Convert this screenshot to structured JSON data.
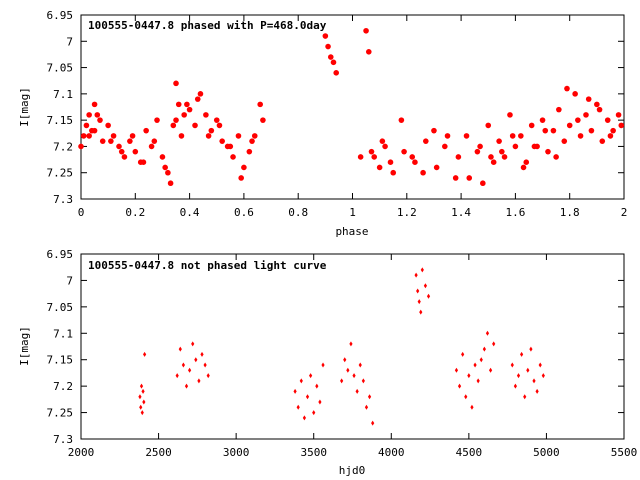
{
  "chart_data": [
    {
      "type": "scatter",
      "title": "100555-0447.8 phased with P=468.0day",
      "xlabel": "phase",
      "ylabel": "I[mag]",
      "xlim": [
        0,
        2
      ],
      "ylim": [
        6.95,
        7.3
      ],
      "y_inverted": true,
      "xticks": [
        0,
        0.2,
        0.4,
        0.6,
        0.8,
        1,
        1.2,
        1.4,
        1.6,
        1.8,
        2
      ],
      "xtick_labels": [
        "0",
        "0.2",
        "0.4",
        "0.6",
        "0.8",
        "1",
        "1.2",
        "1.4",
        "1.6",
        "1.8",
        "2"
      ],
      "yticks": [
        6.95,
        7,
        7.05,
        7.1,
        7.15,
        7.2,
        7.25,
        7.3
      ],
      "ytick_labels": [
        "6.95",
        "7",
        "7.05",
        "7.1",
        "7.15",
        "7.2",
        "7.25",
        "7.3"
      ],
      "marker": "filled-circle",
      "color": "#ff0000",
      "x": [
        0.0,
        0.02,
        0.03,
        0.05,
        0.07,
        0.04,
        0.06,
        0.08,
        0.1,
        0.12,
        0.14,
        0.16,
        0.18,
        0.2,
        0.22,
        0.24,
        0.26,
        0.28,
        0.3,
        0.32,
        0.33,
        0.34,
        0.35,
        0.36,
        0.37,
        0.38,
        0.4,
        0.42,
        0.44,
        0.46,
        0.48,
        0.5,
        0.52,
        0.54,
        0.56,
        0.58,
        0.6,
        0.62,
        0.64,
        0.66,
        0.9,
        0.91,
        0.92,
        0.93,
        0.94,
        1.05,
        1.06,
        1.08,
        1.1,
        1.12,
        1.14,
        1.18,
        1.22,
        1.26,
        1.3,
        1.34,
        1.38,
        1.42,
        1.46,
        1.48,
        1.5,
        1.52,
        1.54,
        1.56,
        1.58,
        1.6,
        1.62,
        1.64,
        1.66,
        1.68,
        1.7,
        1.72,
        1.74,
        1.76,
        1.78,
        1.8,
        1.82,
        1.84,
        1.86,
        1.88,
        1.9,
        1.92,
        1.94,
        1.96,
        1.98
      ],
      "y": [
        7.2,
        7.16,
        7.18,
        7.12,
        7.15,
        7.17,
        7.14,
        7.19,
        7.16,
        7.18,
        7.2,
        7.22,
        7.19,
        7.21,
        7.23,
        7.17,
        7.2,
        7.15,
        7.22,
        7.25,
        7.27,
        7.16,
        7.08,
        7.12,
        7.18,
        7.14,
        7.13,
        7.16,
        7.1,
        7.14,
        7.17,
        7.15,
        7.19,
        7.2,
        7.22,
        7.18,
        7.24,
        7.21,
        7.18,
        7.12,
        6.99,
        7.01,
        7.03,
        7.04,
        7.06,
        6.98,
        7.02,
        7.22,
        7.24,
        7.2,
        7.23,
        7.15,
        7.22,
        7.25,
        7.17,
        7.2,
        7.26,
        7.18,
        7.21,
        7.27,
        7.16,
        7.23,
        7.19,
        7.22,
        7.14,
        7.2,
        7.18,
        7.23,
        7.16,
        7.2,
        7.15,
        7.21,
        7.17,
        7.13,
        7.19,
        7.16,
        7.1,
        7.18,
        7.14,
        7.17,
        7.12,
        7.19,
        7.15,
        7.17,
        7.14
      ],
      "x2": [
        0.01,
        0.03,
        0.05,
        0.11,
        0.15,
        0.19,
        0.23,
        0.27,
        0.31,
        0.35,
        0.39,
        0.43,
        0.47,
        0.51,
        0.55,
        0.59,
        0.63,
        0.67,
        1.03,
        1.07,
        1.11,
        1.15,
        1.19,
        1.23,
        1.27,
        1.31,
        1.35,
        1.39,
        1.43,
        1.47,
        1.51,
        1.55,
        1.59,
        1.63,
        1.67,
        1.71,
        1.75,
        1.79,
        1.83,
        1.87,
        1.91,
        1.95,
        1.99
      ],
      "y2": [
        7.18,
        7.14,
        7.17,
        7.19,
        7.21,
        7.18,
        7.23,
        7.19,
        7.24,
        7.15,
        7.12,
        7.11,
        7.18,
        7.16,
        7.2,
        7.26,
        7.19,
        7.15,
        7.22,
        7.21,
        7.19,
        7.25,
        7.21,
        7.23,
        7.19,
        7.24,
        7.18,
        7.22,
        7.26,
        7.2,
        7.22,
        7.21,
        7.18,
        7.24,
        7.2,
        7.17,
        7.22,
        7.09,
        7.15,
        7.11,
        7.13,
        7.18,
        7.16
      ]
    },
    {
      "type": "scatter",
      "title": "100555-0447.8 not phased light curve",
      "xlabel": "hjd0",
      "ylabel": "I[mag]",
      "xlim": [
        2000,
        5500
      ],
      "ylim": [
        6.95,
        7.3
      ],
      "y_inverted": true,
      "xticks": [
        2000,
        2500,
        3000,
        3500,
        4000,
        4500,
        5000,
        5500
      ],
      "xtick_labels": [
        "2000",
        "2500",
        "3000",
        "3500",
        "4000",
        "4500",
        "5000",
        "5500"
      ],
      "yticks": [
        6.95,
        7,
        7.05,
        7.1,
        7.15,
        7.2,
        7.25,
        7.3
      ],
      "ytick_labels": [
        "6.95",
        "7",
        "7.05",
        "7.1",
        "7.15",
        "7.2",
        "7.25",
        "7.3"
      ],
      "marker": "small-diamond",
      "color": "#ff0000",
      "x": [
        2380,
        2385,
        2390,
        2395,
        2400,
        2405,
        2410,
        2620,
        2640,
        2660,
        2680,
        2700,
        2720,
        2740,
        2760,
        2780,
        2800,
        2820,
        3380,
        3400,
        3420,
        3440,
        3460,
        3480,
        3500,
        3520,
        3540,
        3560,
        3680,
        3700,
        3720,
        3740,
        3760,
        3780,
        3800,
        3820,
        3840,
        3860,
        3880,
        4160,
        4170,
        4180,
        4190,
        4200,
        4220,
        4240,
        4420,
        4440,
        4460,
        4480,
        4500,
        4520,
        4540,
        4560,
        4580,
        4600,
        4620,
        4640,
        4660,
        4780,
        4800,
        4820,
        4840,
        4860,
        4880,
        4900,
        4920,
        4940,
        4960,
        4980
      ],
      "y": [
        7.22,
        7.24,
        7.2,
        7.25,
        7.21,
        7.23,
        7.14,
        7.18,
        7.13,
        7.16,
        7.2,
        7.17,
        7.12,
        7.15,
        7.19,
        7.14,
        7.16,
        7.18,
        7.21,
        7.24,
        7.19,
        7.26,
        7.22,
        7.18,
        7.25,
        7.2,
        7.23,
        7.16,
        7.19,
        7.15,
        7.17,
        7.12,
        7.18,
        7.21,
        7.16,
        7.19,
        7.24,
        7.22,
        7.27,
        6.99,
        7.02,
        7.04,
        7.06,
        6.98,
        7.01,
        7.03,
        7.17,
        7.2,
        7.14,
        7.22,
        7.18,
        7.24,
        7.16,
        7.19,
        7.15,
        7.13,
        7.1,
        7.17,
        7.12,
        7.16,
        7.2,
        7.18,
        7.14,
        7.22,
        7.17,
        7.13,
        7.19,
        7.21,
        7.16,
        7.18
      ]
    }
  ]
}
